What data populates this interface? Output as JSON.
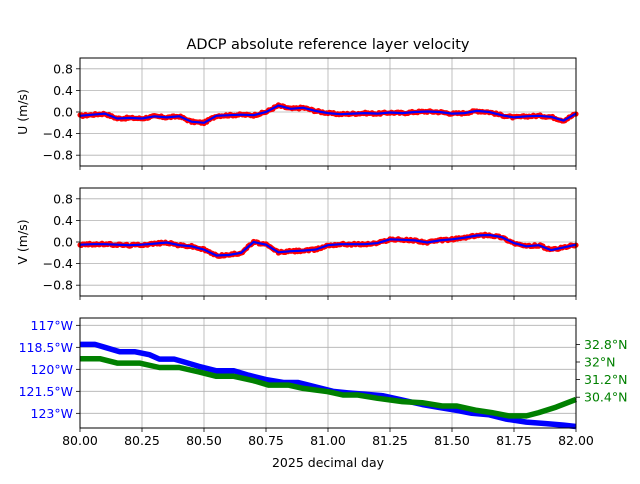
{
  "chart_data": [
    {
      "type": "scatter",
      "title": "ADCP absolute reference layer velocity",
      "ylabel": "U (m/s)",
      "xlabel": "",
      "xlim": [
        80.0,
        82.0
      ],
      "ylim": [
        -1.0,
        1.0
      ],
      "yticks": [
        "0.8",
        "0.4",
        "0.0",
        "−0.4",
        "−0.8"
      ],
      "ytick_values": [
        0.8,
        0.4,
        0.0,
        -0.4,
        -0.8
      ],
      "grid": true,
      "colors": {
        "points": "#ff0000",
        "line": "#0000ff"
      },
      "series": [
        {
          "x": [
            80.0,
            80.05,
            80.1,
            80.15,
            80.2,
            80.25,
            80.3,
            80.35,
            80.4,
            80.45,
            80.5,
            80.55,
            80.6,
            80.65,
            80.7,
            80.75,
            80.8,
            80.85,
            80.9,
            80.95,
            81.0,
            81.05,
            81.1,
            81.15,
            81.2,
            81.25,
            81.3,
            81.35,
            81.4,
            81.45,
            81.5,
            81.55,
            81.6,
            81.65,
            81.7,
            81.75,
            81.8,
            81.85,
            81.9,
            81.95,
            82.0
          ],
          "values": [
            -0.07,
            -0.05,
            -0.03,
            -0.12,
            -0.11,
            -0.12,
            -0.08,
            -0.1,
            -0.08,
            -0.18,
            -0.2,
            -0.07,
            -0.06,
            -0.05,
            -0.06,
            0.0,
            0.12,
            0.06,
            0.08,
            0.02,
            -0.02,
            -0.04,
            -0.03,
            -0.02,
            -0.03,
            -0.01,
            -0.02,
            0.0,
            0.01,
            0.0,
            -0.03,
            -0.02,
            0.02,
            0.0,
            -0.06,
            -0.1,
            -0.08,
            -0.07,
            -0.09,
            -0.16,
            -0.03
          ]
        }
      ]
    },
    {
      "type": "scatter",
      "title": "",
      "ylabel": "V (m/s)",
      "xlabel": "",
      "xlim": [
        80.0,
        82.0
      ],
      "ylim": [
        -1.0,
        1.0
      ],
      "yticks": [
        "0.8",
        "0.4",
        "0.0",
        "−0.4",
        "−0.8"
      ],
      "ytick_values": [
        0.8,
        0.4,
        0.0,
        -0.4,
        -0.8
      ],
      "grid": true,
      "colors": {
        "points": "#ff0000",
        "line": "#0000ff"
      },
      "series": [
        {
          "x": [
            80.0,
            80.05,
            80.1,
            80.15,
            80.2,
            80.25,
            80.3,
            80.35,
            80.4,
            80.45,
            80.5,
            80.55,
            80.6,
            80.65,
            80.7,
            80.75,
            80.8,
            80.85,
            80.9,
            80.95,
            81.0,
            81.05,
            81.1,
            81.15,
            81.2,
            81.25,
            81.3,
            81.35,
            81.4,
            81.45,
            81.5,
            81.55,
            81.6,
            81.65,
            81.7,
            81.75,
            81.8,
            81.85,
            81.9,
            81.95,
            82.0
          ],
          "values": [
            -0.05,
            -0.04,
            -0.04,
            -0.05,
            -0.06,
            -0.05,
            -0.03,
            -0.01,
            -0.06,
            -0.08,
            -0.14,
            -0.25,
            -0.24,
            -0.2,
            0.0,
            -0.05,
            -0.19,
            -0.17,
            -0.16,
            -0.14,
            -0.06,
            -0.04,
            -0.04,
            -0.04,
            -0.02,
            0.05,
            0.04,
            0.03,
            -0.01,
            0.03,
            0.05,
            0.08,
            0.12,
            0.13,
            0.09,
            -0.02,
            -0.08,
            -0.06,
            -0.15,
            -0.1,
            -0.05
          ]
        }
      ]
    },
    {
      "type": "line",
      "title": "",
      "xlabel": "2025 decimal day",
      "xlim": [
        80.0,
        82.0
      ],
      "xticks": [
        "80.00",
        "80.25",
        "80.50",
        "80.75",
        "81.00",
        "81.25",
        "81.50",
        "81.75",
        "82.00"
      ],
      "xtick_values": [
        80.0,
        80.25,
        80.5,
        80.75,
        81.0,
        81.25,
        81.5,
        81.75,
        82.0
      ],
      "grid": true,
      "left_axis": {
        "ylim": [
          -124.0,
          -116.5
        ],
        "yticks": [
          "117°W",
          "118.5°W",
          "120°W",
          "121.5°W",
          "123°W"
        ],
        "ytick_values": [
          -117.0,
          -118.5,
          -120.0,
          -121.5,
          -123.0
        ],
        "color": "#0000ff"
      },
      "right_axis": {
        "ylim": [
          29.0,
          34.0
        ],
        "yticks": [
          "32.8°N",
          "32°N",
          "31.2°N",
          "30.4°N"
        ],
        "ytick_values": [
          32.8,
          32.0,
          31.2,
          30.4
        ],
        "color": "#008000"
      },
      "series": [
        {
          "axis": "left",
          "color": "#0000ff",
          "x": [
            80.0,
            80.06,
            80.1,
            80.16,
            80.22,
            80.28,
            80.32,
            80.38,
            80.42,
            80.48,
            80.55,
            80.62,
            80.68,
            80.75,
            80.82,
            80.88,
            80.95,
            81.02,
            81.08,
            81.15,
            81.22,
            81.3,
            81.38,
            81.45,
            81.52,
            81.58,
            81.65,
            81.72,
            81.8,
            81.88,
            81.95,
            82.0
          ],
          "values": [
            -118.3,
            -118.3,
            -118.5,
            -118.8,
            -118.8,
            -119.0,
            -119.3,
            -119.3,
            -119.5,
            -119.8,
            -120.1,
            -120.1,
            -120.4,
            -120.7,
            -120.9,
            -120.9,
            -121.2,
            -121.5,
            -121.6,
            -121.7,
            -121.8,
            -122.1,
            -122.4,
            -122.6,
            -122.8,
            -123.0,
            -123.1,
            -123.4,
            -123.6,
            -123.7,
            -123.8,
            -123.9
          ]
        },
        {
          "axis": "right",
          "color": "#008000",
          "x": [
            80.0,
            80.08,
            80.15,
            80.24,
            80.32,
            80.4,
            80.48,
            80.55,
            80.62,
            80.7,
            80.76,
            80.84,
            80.9,
            81.0,
            81.06,
            81.12,
            81.2,
            81.3,
            81.38,
            81.46,
            81.52,
            81.6,
            81.66,
            81.73,
            81.8,
            81.85,
            81.92,
            82.0
          ],
          "values": [
            32.15,
            32.15,
            31.95,
            31.95,
            31.75,
            31.75,
            31.55,
            31.35,
            31.35,
            31.15,
            30.95,
            30.95,
            30.8,
            30.65,
            30.5,
            30.5,
            30.35,
            30.2,
            30.15,
            30.0,
            30.0,
            29.8,
            29.7,
            29.55,
            29.55,
            29.7,
            29.95,
            30.3
          ]
        }
      ]
    }
  ]
}
